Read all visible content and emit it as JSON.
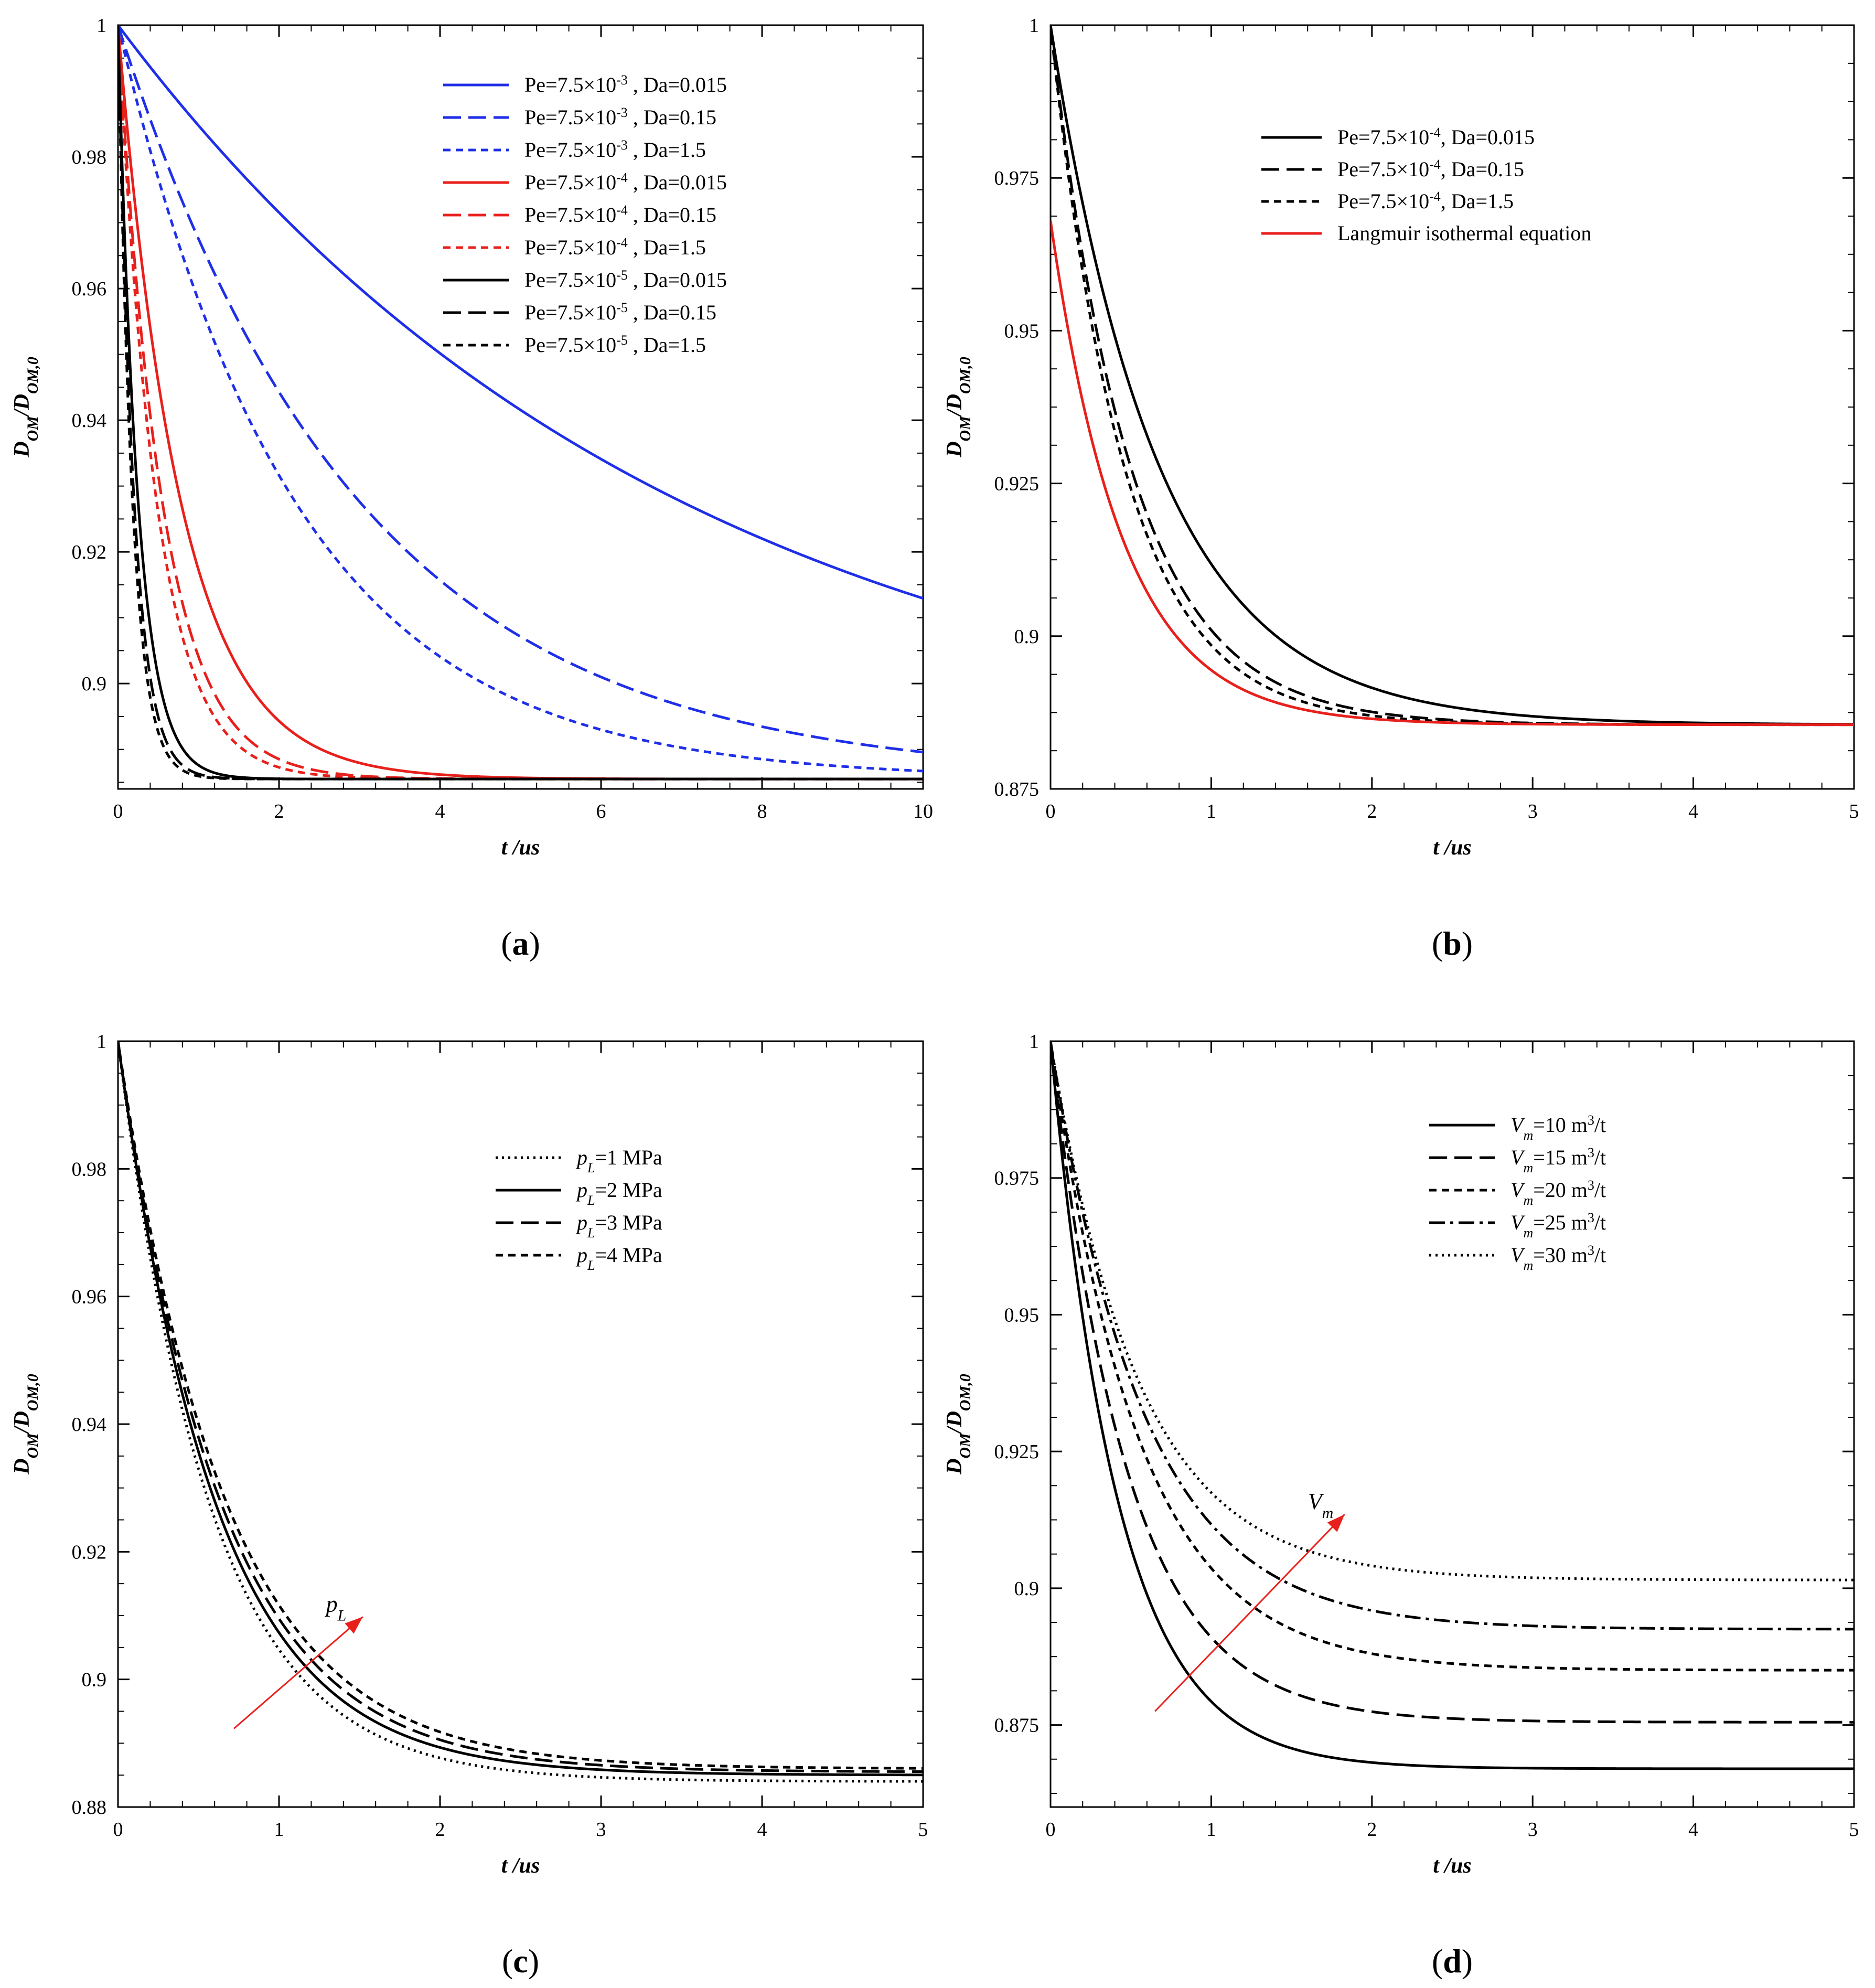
{
  "chart_data": [
    {
      "type": "line",
      "panel": "a",
      "caption_letter": "a",
      "caption_open": "(",
      "caption_close": ")",
      "xlabel": "t /us",
      "ylabel": "D_OM/D_OM,0",
      "xlim": [
        0,
        10
      ],
      "ylim": [
        0.884,
        1.0
      ],
      "xticks": [
        0,
        2,
        4,
        6,
        8,
        10
      ],
      "yticks": [
        0.9,
        0.92,
        0.94,
        0.96,
        0.98,
        1
      ],
      "legend_position": "top-right",
      "series": [
        {
          "pe": "Pe=7.5×10",
          "exp": "-3",
          "da": " , Da=0.015",
          "color": "#1f2fe8",
          "dash": "solid",
          "plateau": 0.8855,
          "tau": 7.0,
          "delay": 0
        },
        {
          "pe": "Pe=7.5×10",
          "exp": "-3",
          "da": " , Da=0.15",
          "color": "#1f2fe8",
          "dash": "long",
          "plateau": 0.8855,
          "tau": 3.0,
          "delay": 0
        },
        {
          "pe": "Pe=7.5×10",
          "exp": "-3",
          "da": " , Da=1.5",
          "color": "#1f2fe8",
          "dash": "short",
          "plateau": 0.8855,
          "tau": 2.2,
          "delay": 0
        },
        {
          "pe": "Pe=7.5×10",
          "exp": "-4",
          "da": " , Da=0.015",
          "color": "#e8201c",
          "dash": "solid",
          "plateau": 0.8855,
          "tau": 0.78,
          "delay": 0
        },
        {
          "pe": "Pe=7.5×10",
          "exp": "-4",
          "da": " , Da=0.15",
          "color": "#e8201c",
          "dash": "long",
          "plateau": 0.8855,
          "tau": 0.55,
          "delay": 0
        },
        {
          "pe": "Pe=7.5×10",
          "exp": "-4",
          "da": " , Da=1.5",
          "color": "#e8201c",
          "dash": "short",
          "plateau": 0.8855,
          "tau": 0.48,
          "delay": 0
        },
        {
          "pe": "Pe=7.5×10",
          "exp": "-5",
          "da": " , Da=0.015",
          "color": "#000000",
          "dash": "solid",
          "plateau": 0.8855,
          "tau": 0.25,
          "delay": 0
        },
        {
          "pe": "Pe=7.5×10",
          "exp": "-5",
          "da": " , Da=0.15",
          "color": "#000000",
          "dash": "long",
          "plateau": 0.8855,
          "tau": 0.2,
          "delay": 0
        },
        {
          "pe": "Pe=7.5×10",
          "exp": "-5",
          "da": " , Da=1.5",
          "color": "#000000",
          "dash": "short",
          "plateau": 0.8855,
          "tau": 0.18,
          "delay": 0
        }
      ]
    },
    {
      "type": "line",
      "panel": "b",
      "caption_letter": "b",
      "caption_open": "(",
      "caption_close": ")",
      "xlabel": "t /us",
      "ylabel": "D_OM/D_OM,0",
      "xlim": [
        0,
        5
      ],
      "ylim": [
        0.875,
        1.0
      ],
      "xticks": [
        0,
        1,
        2,
        3,
        4,
        5
      ],
      "yticks": [
        0.875,
        0.9,
        0.925,
        0.95,
        0.975,
        1
      ],
      "legend_position": "top-right",
      "series": [
        {
          "pe": "Pe=7.5×10",
          "exp": "-4",
          "da": ", Da=0.015",
          "color": "#000000",
          "dash": "solid",
          "plateau": 0.8855,
          "tau": 0.68,
          "delay": 0
        },
        {
          "pe": "Pe=7.5×10",
          "exp": "-4",
          "da": ", Da=0.15",
          "color": "#000000",
          "dash": "long",
          "plateau": 0.8855,
          "tau": 0.5,
          "delay": 0
        },
        {
          "pe": "Pe=7.5×10",
          "exp": "-4",
          "da": ", Da=1.5",
          "color": "#000000",
          "dash": "short",
          "plateau": 0.8855,
          "tau": 0.46,
          "delay": 0
        },
        {
          "name": "Langmuir isothermal equation",
          "color": "#e8201c",
          "dash": "solid",
          "plateau": 0.8855,
          "tau": 0.45,
          "start": 0.968,
          "delay": 0
        }
      ]
    },
    {
      "type": "line",
      "panel": "c",
      "caption_letter": "c",
      "caption_open": "(",
      "caption_close": ")",
      "xlabel": "t /us",
      "ylabel": "D_OM/D_OM,0",
      "xlim": [
        0,
        5
      ],
      "ylim": [
        0.88,
        1.0
      ],
      "xticks": [
        0,
        1,
        2,
        3,
        4,
        5
      ],
      "yticks": [
        0.88,
        0.9,
        0.92,
        0.94,
        0.96,
        0.98,
        1
      ],
      "legend_position": "top-right",
      "annotation": {
        "text": "p",
        "sub": "L",
        "x0": 0.72,
        "y0": 0.8923,
        "x1": 1.52,
        "y1": 0.9098
      },
      "series": [
        {
          "p": "p",
          "sub": "L",
          "rest": "=1 MPa",
          "color": "#000000",
          "dash": "dot",
          "plateau": 0.884,
          "tau": 0.58,
          "delay": 0
        },
        {
          "p": "p",
          "sub": "L",
          "rest": "=2 MPa",
          "color": "#000000",
          "dash": "solid",
          "plateau": 0.885,
          "tau": 0.61,
          "delay": 0
        },
        {
          "p": "p",
          "sub": "L",
          "rest": "=3 MPa",
          "color": "#000000",
          "dash": "long",
          "plateau": 0.8855,
          "tau": 0.64,
          "delay": 0
        },
        {
          "p": "p",
          "sub": "L",
          "rest": "=4 MPa",
          "color": "#000000",
          "dash": "short",
          "plateau": 0.886,
          "tau": 0.67,
          "delay": 0
        }
      ]
    },
    {
      "type": "line",
      "panel": "d",
      "caption_letter": "d",
      "caption_open": "(",
      "caption_close": ")",
      "xlabel": "t /us",
      "ylabel": "D_OM/D_OM,0",
      "xlim": [
        0,
        5
      ],
      "ylim": [
        0.86,
        1.0
      ],
      "xticks": [
        0,
        1,
        2,
        3,
        4,
        5
      ],
      "yticks": [
        0.875,
        0.9,
        0.925,
        0.95,
        0.975,
        1
      ],
      "legend_position": "top-right",
      "annotation": {
        "text": "V",
        "sub": "m",
        "x0": 0.65,
        "y0": 0.8775,
        "x1": 1.83,
        "y1": 0.9135
      },
      "series": [
        {
          "p": "V",
          "sub": "m",
          "rest": "=10 m",
          "sup": "3",
          "tail": "/t",
          "color": "#000000",
          "dash": "solid",
          "plateau": 0.867,
          "tau": 0.42,
          "delay": 0
        },
        {
          "p": "V",
          "sub": "m",
          "rest": "=15 m",
          "sup": "3",
          "tail": "/t",
          "color": "#000000",
          "dash": "long",
          "plateau": 0.8755,
          "tau": 0.48,
          "delay": 0
        },
        {
          "p": "V",
          "sub": "m",
          "rest": "=20 m",
          "sup": "3",
          "tail": "/t",
          "color": "#000000",
          "dash": "short",
          "plateau": 0.885,
          "tau": 0.55,
          "delay": 0
        },
        {
          "p": "V",
          "sub": "m",
          "rest": "=25 m",
          "sup": "3",
          "tail": "/t",
          "color": "#000000",
          "dash": "dashdot",
          "plateau": 0.8925,
          "tau": 0.58,
          "delay": 0
        },
        {
          "p": "V",
          "sub": "m",
          "rest": "=30 m",
          "sup": "3",
          "tail": "/t",
          "color": "#000000",
          "dash": "dot",
          "plateau": 0.9015,
          "tau": 0.55,
          "delay": 0
        }
      ]
    }
  ]
}
